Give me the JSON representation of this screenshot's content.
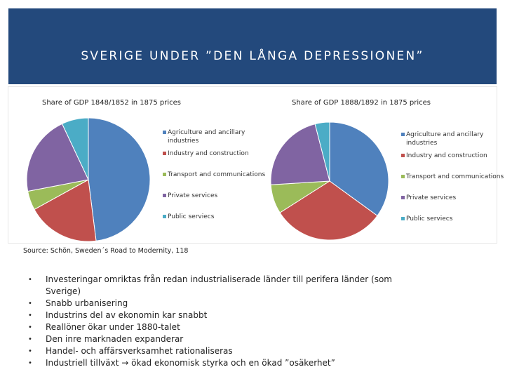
{
  "slide": {
    "title": "SVERIGE UNDER ”DEN LÅNGA DEPRESSIONEN”",
    "source": "Source: Schön, Sweden´s Road to Modernity, 118",
    "bullets": [
      "Investeringar omriktas från redan industrialiserade länder till perifera länder (som Sverige)",
      "Snabb urbanisering",
      "Industrins del av ekonomin kar snabbt",
      "Reallöner ökar under 1880-talet",
      "Den inre marknaden expanderar",
      "Handel- och affärsverksamhet rationaliseras",
      "Industriell tillväxt → ökad ekonomisk styrka och en ökad ”osäkerhet”"
    ],
    "bullet_glyph": "•"
  },
  "colors": {
    "header": "#23497c",
    "agriculture": "#4f81bd",
    "industry": "#c0504d",
    "transport": "#9bbb59",
    "private": "#8064a2",
    "public": "#4bacc6"
  },
  "chart_data": [
    {
      "type": "pie",
      "title": "Share of GDP 1848/1852 in 1875 prices",
      "categories": [
        "Agriculture and ancillary industries",
        "Industry and construction",
        "Transport and communications",
        "Private services",
        "Public serviecs"
      ],
      "values": [
        48,
        19,
        5,
        21,
        7
      ],
      "legend_position": "right"
    },
    {
      "type": "pie",
      "title": "Share of GDP 1888/1892 in 1875 prices",
      "categories": [
        "Agriculture and ancillary industries",
        "Industry and construction",
        "Transport and communications",
        "Private services",
        "Public serviecs"
      ],
      "values": [
        35,
        31,
        8,
        22,
        4
      ],
      "legend_position": "right"
    }
  ]
}
